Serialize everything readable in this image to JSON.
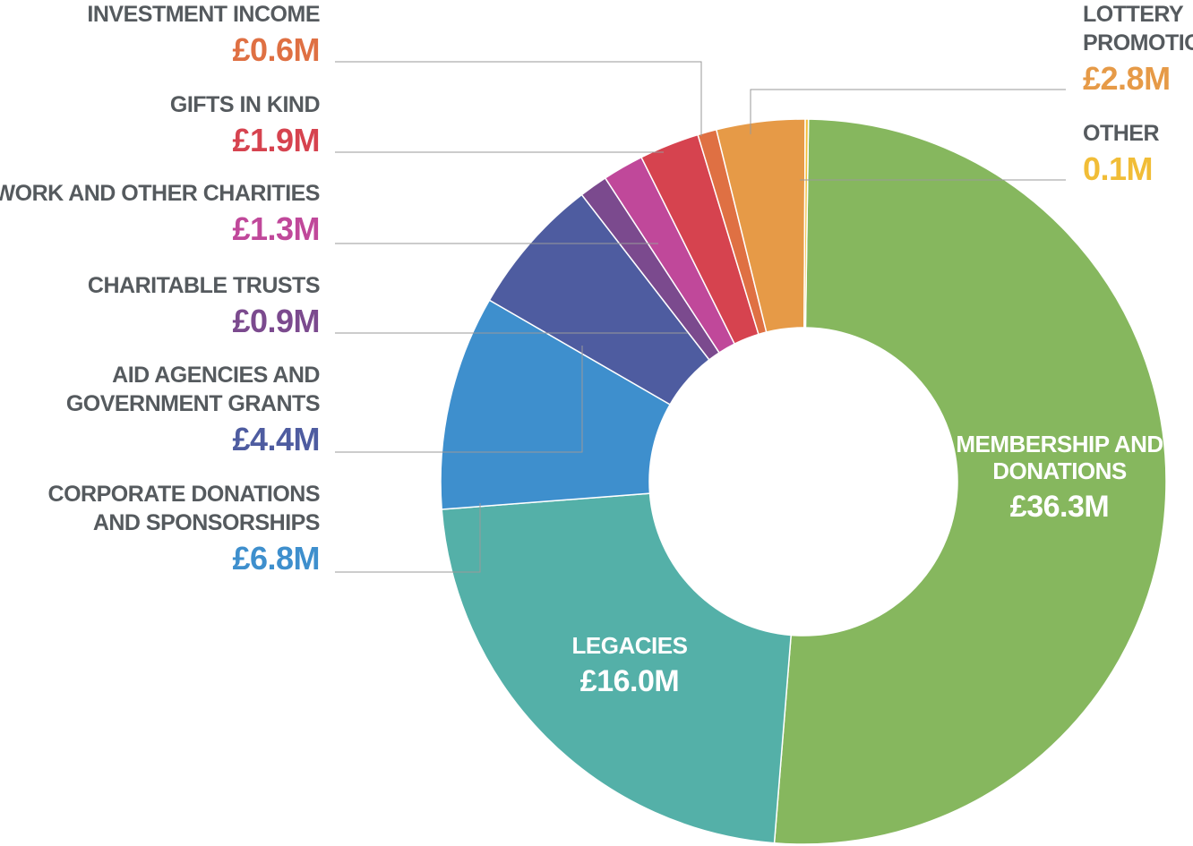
{
  "chart_data": {
    "type": "donut",
    "unit": "£M",
    "slices": [
      {
        "id": "membership",
        "lines": [
          "MEMBERSHIP AND",
          "DONATIONS"
        ],
        "value": 36.3,
        "value_label": "£36.3M",
        "color": "#86b75e",
        "label_inside": true
      },
      {
        "id": "legacies",
        "lines": [
          "LEGACIES"
        ],
        "value": 16.0,
        "value_label": "£16.0M",
        "color": "#54b0a8",
        "label_inside": true
      },
      {
        "id": "corporate",
        "lines": [
          "CORPORATE DONATIONS",
          "AND SPONSORSHIPS"
        ],
        "value": 6.8,
        "value_label": "£6.8M",
        "color": "#3e8fcd"
      },
      {
        "id": "aid",
        "lines": [
          "AID AGENCIES AND",
          "GOVERNMENT GRANTS"
        ],
        "value": 4.4,
        "value_label": "£4.4M",
        "color": "#4e5ca0"
      },
      {
        "id": "charitable",
        "lines": [
          "CHARITABLE TRUSTS"
        ],
        "value": 0.9,
        "value_label": "£0.9M",
        "color": "#7b4a8e"
      },
      {
        "id": "wwf",
        "lines": [
          "WWF NETWORK AND OTHER CHARITIES"
        ],
        "value": 1.3,
        "value_label": "£1.3M",
        "color": "#c0489a"
      },
      {
        "id": "gifts",
        "lines": [
          "GIFTS IN KIND"
        ],
        "value": 1.9,
        "value_label": "£1.9M",
        "color": "#d6434f"
      },
      {
        "id": "investment",
        "lines": [
          "INVESTMENT INCOME"
        ],
        "value": 0.6,
        "value_label": "£0.6M",
        "color": "#df7043"
      },
      {
        "id": "lottery",
        "lines": [
          "LOTTERY",
          "PROMOTIONS"
        ],
        "value": 2.8,
        "value_label": "£2.8M",
        "color": "#e69a47"
      },
      {
        "id": "other",
        "lines": [
          "OTHER"
        ],
        "value": 0.1,
        "value_label": "0.1M",
        "color": "#f1bd37"
      }
    ]
  }
}
